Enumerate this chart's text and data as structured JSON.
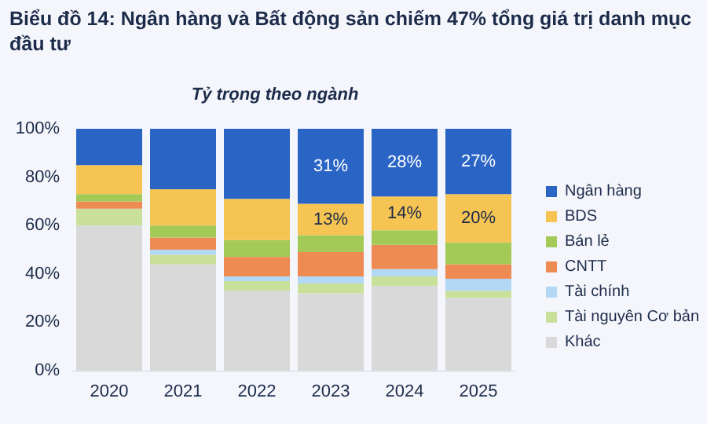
{
  "chart_data": {
    "type": "bar",
    "title": "Biểu đồ 14: Ngân hàng và Bất động sản chiếm 47% tổng giá trị danh mục đầu tư",
    "subtitle": "Tỷ trọng theo ngành",
    "categories": [
      "2020",
      "2021",
      "2022",
      "2023",
      "2024",
      "2025"
    ],
    "stacked": true,
    "series": [
      {
        "name": "Khác",
        "color": "#d9d9d9",
        "values": [
          60,
          44,
          33,
          32,
          35,
          30
        ]
      },
      {
        "name": "Tài nguyên Cơ bản",
        "color": "#c9e09b",
        "values": [
          7,
          4,
          4,
          4,
          4,
          3
        ]
      },
      {
        "name": "Tài chính",
        "color": "#b3d8f5",
        "values": [
          0,
          2,
          2,
          3,
          3,
          5
        ]
      },
      {
        "name": "CNTT",
        "color": "#ee8b52",
        "values": [
          3,
          5,
          8,
          10,
          10,
          6
        ]
      },
      {
        "name": "Bán lẻ",
        "color": "#a3c957",
        "values": [
          3,
          5,
          7,
          7,
          6,
          9
        ]
      },
      {
        "name": "BDS",
        "color": "#f5c452",
        "values": [
          12,
          15,
          17,
          13,
          14,
          20
        ],
        "value_labels": [
          null,
          null,
          null,
          "13%",
          "14%",
          "20%"
        ]
      },
      {
        "name": "Ngân hàng",
        "color": "#2a64c5",
        "values": [
          15,
          25,
          29,
          31,
          28,
          27
        ],
        "value_labels": [
          null,
          null,
          null,
          "31%",
          "28%",
          "27%"
        ]
      }
    ],
    "ylim": [
      0,
      100
    ],
    "yticks": [
      {
        "value": 0,
        "label": "0%"
      },
      {
        "value": 20,
        "label": "20%"
      },
      {
        "value": 40,
        "label": "40%"
      },
      {
        "value": 60,
        "label": "60%"
      },
      {
        "value": 80,
        "label": "80%"
      },
      {
        "value": 100,
        "label": "100%"
      }
    ],
    "grid": false,
    "legend": "right"
  }
}
